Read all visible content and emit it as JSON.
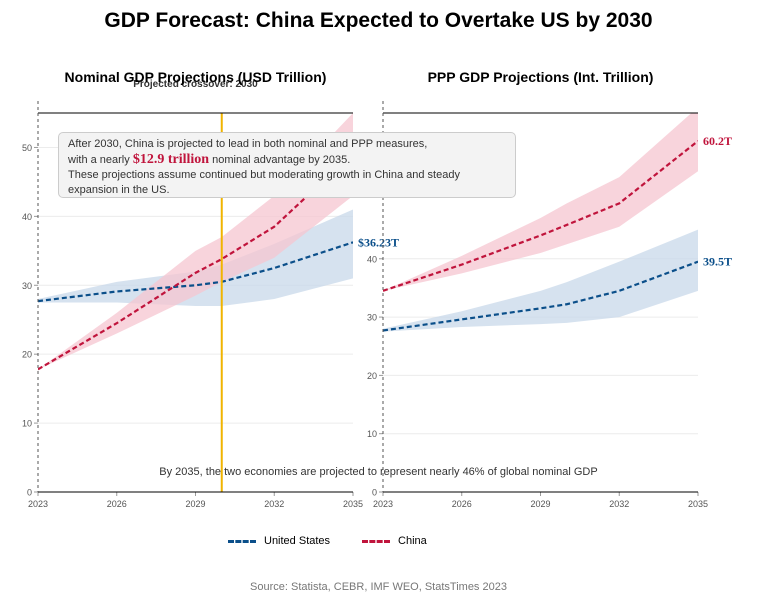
{
  "title": "GDP Forecast: China Expected to Overtake US by 2030",
  "colors": {
    "us": "#0b4f8a",
    "china": "#c0143c",
    "crossover": "#f0b400",
    "us_band": "#c8d8ea",
    "china_band": "#f5c6d0"
  },
  "chart_data": [
    {
      "type": "line",
      "title": "Nominal GDP Projections (USD Trillion)",
      "x": [
        2023,
        2026,
        2029,
        2030,
        2032,
        2035
      ],
      "xticks": [
        2023,
        2026,
        2029,
        2032,
        2035
      ],
      "xlim": [
        2023,
        2035
      ],
      "ylim": [
        0,
        55
      ],
      "yticks": [
        0,
        10,
        20,
        30,
        40,
        50
      ],
      "series": [
        {
          "name": "United States",
          "values": [
            27.7,
            29.1,
            30.0,
            30.5,
            32.5,
            36.23
          ],
          "lower": [
            27.5,
            27.5,
            27.0,
            27.0,
            28.0,
            31.0
          ],
          "upper": [
            28.0,
            30.5,
            32.0,
            33.0,
            36.0,
            41.0
          ]
        },
        {
          "name": "China",
          "values": [
            17.8,
            24.5,
            31.8,
            33.8,
            38.5,
            49.13
          ],
          "lower": [
            17.8,
            23.0,
            28.5,
            30.5,
            34.0,
            43.0
          ],
          "upper": [
            17.8,
            26.0,
            35.0,
            37.0,
            43.0,
            55.0
          ]
        }
      ],
      "end_label_us": "$36.23T",
      "crossover_year": 2030,
      "crossover_label": "Projected crossover: 2030"
    },
    {
      "type": "line",
      "title": "PPP GDP Projections (Int. Trillion)",
      "x": [
        2023,
        2026,
        2029,
        2030,
        2032,
        2035
      ],
      "xticks": [
        2023,
        2026,
        2029,
        2032,
        2035
      ],
      "xlim": [
        2023,
        2035
      ],
      "ylim": [
        0,
        65
      ],
      "yticks": [
        0,
        10,
        20,
        30,
        40
      ],
      "series": [
        {
          "name": "United States",
          "values": [
            27.7,
            29.6,
            31.5,
            32.2,
            34.5,
            39.5
          ],
          "lower": [
            27.5,
            28.3,
            28.8,
            29.0,
            30.0,
            34.5
          ],
          "upper": [
            28.0,
            31.0,
            34.5,
            36.0,
            39.5,
            45.0
          ]
        },
        {
          "name": "China",
          "values": [
            34.5,
            39.0,
            44.0,
            45.8,
            49.5,
            60.2
          ],
          "lower": [
            34.5,
            37.5,
            41.0,
            42.5,
            45.5,
            55.0
          ],
          "upper": [
            34.5,
            40.5,
            47.0,
            49.5,
            54.0,
            66.0
          ]
        }
      ],
      "end_label_us": "39.5T",
      "end_label_china": "60.2T"
    }
  ],
  "annotation": {
    "line1": "After 2030, China is projected to lead in both nominal and PPP measures,",
    "line2_before": "with a nearly ",
    "line2_highlight": "$12.9 trillion",
    "line2_after": " nominal advantage by 2035.",
    "line3": "These projections assume continued but moderating growth in China and steady",
    "line4": "expansion in the US."
  },
  "bottom_note": "By 2035, the two economies are projected to represent nearly 46% of global nominal GDP",
  "legend": {
    "us": "United States",
    "china": "China"
  },
  "source": "Source: Statista, CEBR, IMF WEO, StatsTimes 2023"
}
